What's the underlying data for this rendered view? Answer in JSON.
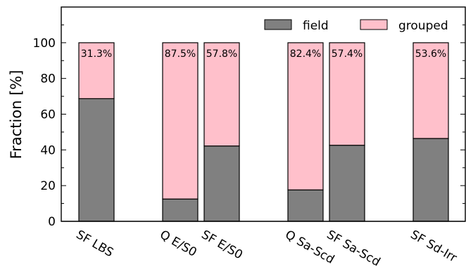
{
  "chart_data": {
    "type": "bar",
    "stacked": true,
    "ylabel": "Fraction [%]",
    "ylim": [
      0,
      120
    ],
    "yticks": [
      0,
      20,
      40,
      60,
      80,
      100
    ],
    "categories": [
      "SF LBS",
      "Q E/S0",
      "SF E/S0",
      "Q Sa-Scd",
      "SF Sa-Scd",
      "SF Sd-Irr"
    ],
    "series": [
      {
        "name": "field",
        "color": "#808080",
        "values": [
          68.7,
          12.5,
          42.2,
          17.6,
          42.6,
          46.4
        ]
      },
      {
        "name": "grouped",
        "color": "#ffc0cb",
        "values": [
          31.3,
          87.5,
          57.8,
          82.4,
          57.4,
          53.6
        ]
      }
    ],
    "bar_labels": [
      "31.3%",
      "87.5%",
      "57.8%",
      "82.4%",
      "57.4%",
      "53.6%"
    ],
    "legend_position": "top-right",
    "grid": false
  }
}
